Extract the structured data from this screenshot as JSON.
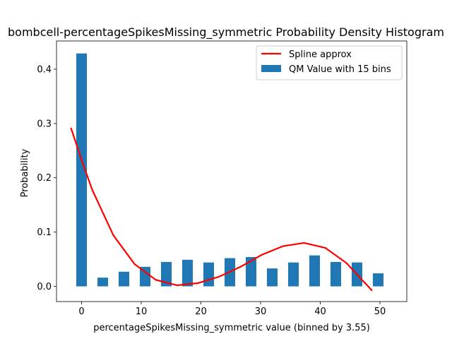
{
  "chart_data": {
    "type": "bar",
    "title": "bombcell-percentageSpikesMissing_symmetric Probability Density Histogram",
    "xlabel": "percentageSpikesMissing_symmetric value (binned by 3.55)",
    "ylabel": "Probability",
    "xlim": [
      -4.2,
      54.5
    ],
    "ylim": [
      -0.028,
      0.452
    ],
    "xticks": [
      0,
      10,
      20,
      30,
      40,
      50
    ],
    "yticks": [
      0.0,
      0.1,
      0.2,
      0.3,
      0.4
    ],
    "grid": false,
    "legend_position": "top-right",
    "bars": {
      "name": "QM Value with 15 bins",
      "color": "#1f77b4",
      "width": 1.78,
      "x": [
        0,
        3.55,
        7.1,
        10.65,
        14.2,
        17.75,
        21.3,
        24.85,
        28.4,
        31.95,
        35.5,
        39.05,
        42.6,
        46.15,
        49.7
      ],
      "values": [
        0.429,
        0.016,
        0.027,
        0.036,
        0.045,
        0.049,
        0.044,
        0.052,
        0.054,
        0.033,
        0.044,
        0.057,
        0.045,
        0.044,
        0.024
      ]
    },
    "spline": {
      "name": "Spline approx",
      "color": "#ff0000",
      "x": [
        -1.78,
        0.0,
        1.78,
        5.33,
        8.88,
        12.43,
        14.2,
        16.0,
        19.53,
        23.08,
        26.63,
        30.18,
        33.73,
        37.28,
        40.83,
        44.38,
        48.7
      ],
      "y": [
        0.292,
        0.233,
        0.178,
        0.094,
        0.041,
        0.012,
        0.007,
        0.002,
        0.006,
        0.018,
        0.036,
        0.058,
        0.074,
        0.08,
        0.071,
        0.043,
        -0.008
      ]
    }
  }
}
